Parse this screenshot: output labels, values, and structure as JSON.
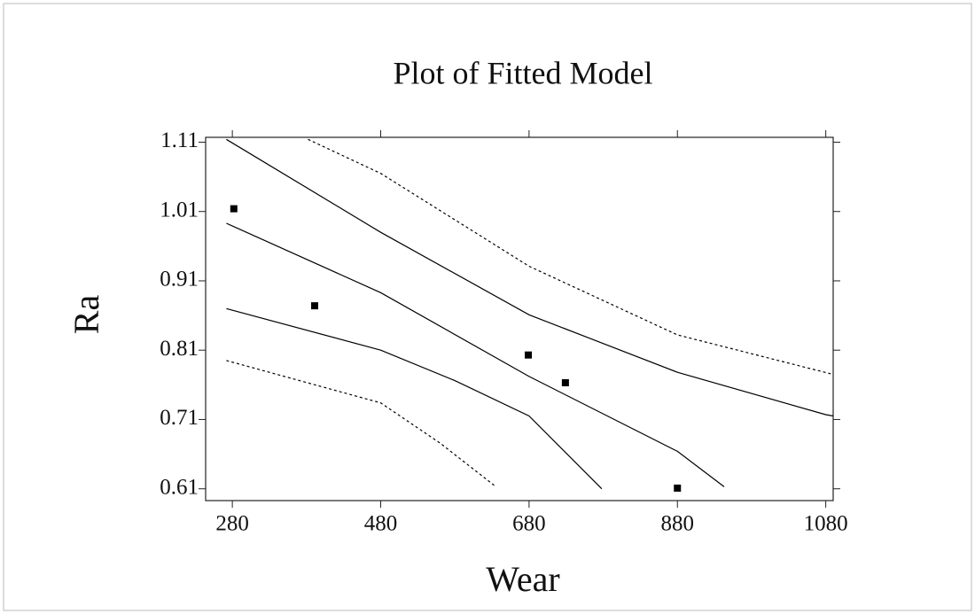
{
  "chart_data": {
    "type": "scatter",
    "title": "Plot of Fitted Model",
    "x_label": "Wear",
    "y_label": "Ra",
    "xlim": [
      244,
      1090
    ],
    "ylim": [
      0.593,
      1.117
    ],
    "xticks": [
      280,
      480,
      680,
      880,
      1080
    ],
    "yticks": [
      0.61,
      0.71,
      0.81,
      0.91,
      1.01,
      1.11
    ],
    "color": "#000000",
    "series": [
      {
        "style": "points",
        "x": [
          282,
          391,
          679,
          729,
          880
        ],
        "values": [
          1.014,
          0.874,
          0.803,
          0.763,
          0.611
        ]
      },
      {
        "style": "solid",
        "x": [
          272,
          480,
          680,
          880,
          943
        ],
        "values": [
          0.993,
          0.893,
          0.772,
          0.664,
          0.613
        ]
      },
      {
        "style": "solid",
        "x": [
          272,
          480,
          680,
          880,
          1080,
          1090
        ],
        "values": [
          1.114,
          0.98,
          0.861,
          0.778,
          0.717,
          0.715
        ]
      },
      {
        "style": "solid",
        "x": [
          272,
          480,
          580,
          680,
          778
        ],
        "values": [
          0.87,
          0.81,
          0.766,
          0.715,
          0.61
        ]
      },
      {
        "style": "dashed",
        "x": [
          382,
          480,
          680,
          880,
          1090
        ],
        "values": [
          1.114,
          1.065,
          0.931,
          0.832,
          0.775
        ]
      },
      {
        "style": "dashed",
        "x": [
          272,
          480,
          560,
          633
        ],
        "values": [
          0.795,
          0.734,
          0.676,
          0.615
        ]
      }
    ]
  }
}
